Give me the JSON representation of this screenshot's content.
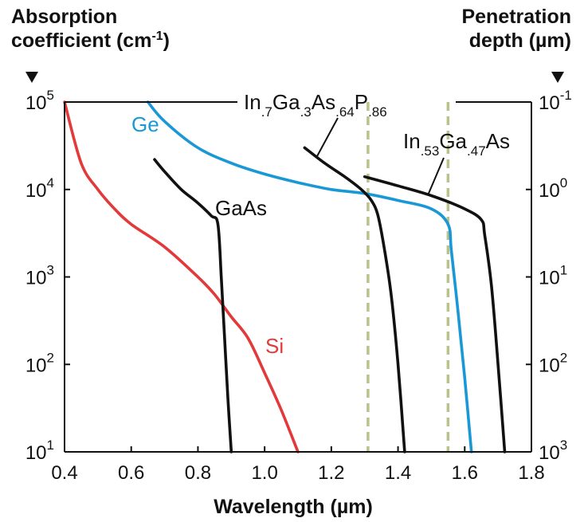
{
  "chart_data": {
    "type": "line",
    "left_axis_title": [
      "Absorption",
      "coefficient (cm",
      "-1",
      ")"
    ],
    "right_axis_title": [
      "Penetration",
      "depth (µm)"
    ],
    "xlabel": "Wavelength (µm)",
    "xlim": [
      0.4,
      1.8
    ],
    "x_ticks": [
      "0.4",
      "0.6",
      "0.8",
      "1.0",
      "1.2",
      "1.4",
      "1.6",
      "1.8"
    ],
    "ylim": [
      10,
      100000
    ],
    "yscale": "log",
    "left_ticks": [
      {
        "base": "10",
        "exp": "5"
      },
      {
        "base": "10",
        "exp": "4"
      },
      {
        "base": "10",
        "exp": "3"
      },
      {
        "base": "10",
        "exp": "2"
      },
      {
        "base": "10",
        "exp": "1"
      }
    ],
    "right_ticks": [
      {
        "base": "10",
        "exp": "-1"
      },
      {
        "base": "10",
        "exp": "0"
      },
      {
        "base": "10",
        "exp": "1"
      },
      {
        "base": "10",
        "exp": "2"
      },
      {
        "base": "10",
        "exp": "3"
      }
    ],
    "reference_lines": [
      1.31,
      1.55
    ],
    "series": [
      {
        "name": "Si",
        "color": "#e23a3a",
        "points": [
          [
            0.4,
            100000
          ],
          [
            0.45,
            20000
          ],
          [
            0.5,
            10000
          ],
          [
            0.55,
            6000
          ],
          [
            0.6,
            4000
          ],
          [
            0.7,
            2200
          ],
          [
            0.8,
            1000
          ],
          [
            0.85,
            630
          ],
          [
            0.9,
            350
          ],
          [
            0.95,
            200
          ],
          [
            1.0,
            80
          ],
          [
            1.05,
            30
          ],
          [
            1.1,
            10
          ]
        ]
      },
      {
        "name": "Ge",
        "color": "#1a98d6",
        "points": [
          [
            0.65,
            100000
          ],
          [
            0.7,
            60000
          ],
          [
            0.8,
            30000
          ],
          [
            0.9,
            20000
          ],
          [
            1.0,
            15000
          ],
          [
            1.1,
            12000
          ],
          [
            1.2,
            10000
          ],
          [
            1.3,
            9000
          ],
          [
            1.4,
            7500
          ],
          [
            1.5,
            6000
          ],
          [
            1.55,
            4000
          ],
          [
            1.56,
            2000
          ],
          [
            1.58,
            400
          ],
          [
            1.6,
            70
          ],
          [
            1.62,
            10
          ]
        ]
      },
      {
        "name": "GaAs",
        "color": "#111111",
        "points": [
          [
            0.67,
            22000
          ],
          [
            0.7,
            16000
          ],
          [
            0.75,
            10000
          ],
          [
            0.8,
            7000
          ],
          [
            0.84,
            5000
          ],
          [
            0.86,
            4000
          ],
          [
            0.87,
            1000
          ],
          [
            0.88,
            200
          ],
          [
            0.89,
            40
          ],
          [
            0.9,
            10
          ]
        ]
      },
      {
        "name": "In.7Ga.3As.64P.86",
        "color": "#111111",
        "points": [
          [
            1.12,
            30000
          ],
          [
            1.18,
            20000
          ],
          [
            1.24,
            14000
          ],
          [
            1.29,
            10000
          ],
          [
            1.32,
            7500
          ],
          [
            1.34,
            5000
          ],
          [
            1.36,
            2000
          ],
          [
            1.38,
            600
          ],
          [
            1.4,
            100
          ],
          [
            1.42,
            10
          ]
        ]
      },
      {
        "name": "In.53Ga.47As",
        "color": "#111111",
        "points": [
          [
            1.3,
            14000
          ],
          [
            1.4,
            11000
          ],
          [
            1.5,
            8500
          ],
          [
            1.6,
            6000
          ],
          [
            1.65,
            4500
          ],
          [
            1.66,
            3000
          ],
          [
            1.68,
            800
          ],
          [
            1.7,
            100
          ],
          [
            1.72,
            10
          ]
        ]
      }
    ],
    "annotations": [
      {
        "text": "Ge",
        "color": "#1a98d6"
      },
      {
        "text": "GaAs",
        "color": "#111111"
      },
      {
        "text": "Si",
        "color": "#e23a3a"
      },
      {
        "parts": [
          [
            "In",
            ""
          ],
          [
            ".7",
            "sub"
          ],
          [
            "Ga",
            ""
          ],
          [
            ".3",
            "sub"
          ],
          [
            "As",
            ""
          ],
          [
            ".64",
            "sub"
          ],
          [
            "P",
            ""
          ],
          [
            ".86",
            "sub"
          ]
        ],
        "color": "#111111"
      },
      {
        "parts": [
          [
            "In",
            ""
          ],
          [
            ".53",
            "sub"
          ],
          [
            "Ga",
            ""
          ],
          [
            ".47",
            "sub"
          ],
          [
            "As",
            ""
          ]
        ],
        "color": "#111111"
      }
    ],
    "grid": false
  }
}
